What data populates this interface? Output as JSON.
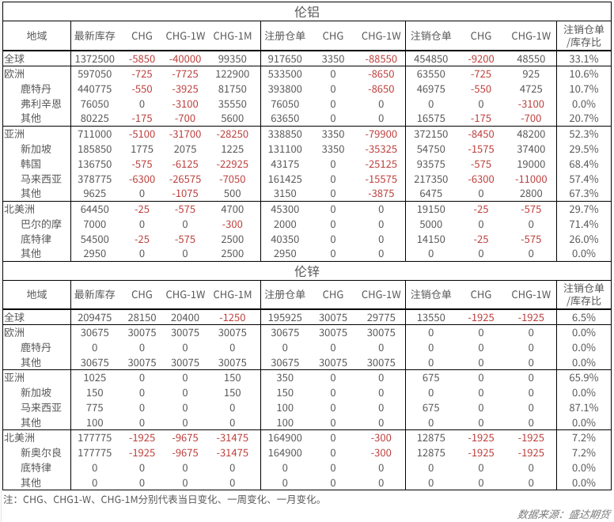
{
  "colors": {
    "text": "#595959",
    "negative": "#bc3f3c",
    "border": "#000000",
    "background": "#ffffff",
    "edge_line": "#e2e2e2"
  },
  "chart_data": [
    {
      "type": "table",
      "title": "伦铝",
      "columns": [
        "地域",
        "最新库存",
        "CHG",
        "CHG-1W",
        "CHG-1M",
        "注册仓单",
        "CHG",
        "CHG-1W",
        "注销仓单",
        "CHG",
        "CHG-1W",
        "注销仓单\n/库存比"
      ],
      "groups": [
        [
          {
            "region": "全球",
            "indent": false,
            "values": [
              "1372500",
              "-5850",
              "-40000",
              "99350",
              "917650",
              "3350",
              "-88550",
              "454850",
              "-9200",
              "48550",
              "33.1%"
            ]
          }
        ],
        [
          {
            "region": "欧洲",
            "indent": false,
            "values": [
              "597050",
              "-725",
              "-7725",
              "122900",
              "533500",
              "0",
              "-8650",
              "63550",
              "-725",
              "925",
              "10.6%"
            ]
          },
          {
            "region": "鹿特丹",
            "indent": true,
            "values": [
              "440775",
              "-550",
              "-3925",
              "81750",
              "393800",
              "0",
              "-8650",
              "46975",
              "-550",
              "4725",
              "10.7%"
            ]
          },
          {
            "region": "弗利辛恩",
            "indent": true,
            "values": [
              "76050",
              "0",
              "-3100",
              "35550",
              "76050",
              "0",
              "0",
              "0",
              "0",
              "-3100",
              "0.0%"
            ]
          },
          {
            "region": "其他",
            "indent": true,
            "values": [
              "80225",
              "-175",
              "-700",
              "5600",
              "63650",
              "0",
              "0",
              "16575",
              "-175",
              "-700",
              "20.7%"
            ]
          }
        ],
        [
          {
            "region": "亚洲",
            "indent": false,
            "values": [
              "711000",
              "-5100",
              "-31700",
              "-28250",
              "338850",
              "3350",
              "-79900",
              "372150",
              "-8450",
              "48200",
              "52.3%"
            ]
          },
          {
            "region": "新加坡",
            "indent": true,
            "values": [
              "185850",
              "1775",
              "2075",
              "1225",
              "131100",
              "3350",
              "-35325",
              "54750",
              "-1575",
              "37400",
              "29.5%"
            ]
          },
          {
            "region": "韩国",
            "indent": true,
            "values": [
              "136750",
              "-575",
              "-6125",
              "-22925",
              "43175",
              "0",
              "-25125",
              "93575",
              "-575",
              "19000",
              "68.4%"
            ]
          },
          {
            "region": "马来西亚",
            "indent": true,
            "values": [
              "378775",
              "-6300",
              "-26575",
              "-7050",
              "161425",
              "0",
              "-15575",
              "217350",
              "-6300",
              "-11000",
              "57.4%"
            ]
          },
          {
            "region": "其他",
            "indent": true,
            "values": [
              "9625",
              "0",
              "-1075",
              "500",
              "3150",
              "0",
              "-3875",
              "6475",
              "0",
              "2800",
              "67.3%"
            ]
          }
        ],
        [
          {
            "region": "北美洲",
            "indent": false,
            "values": [
              "64450",
              "-25",
              "-575",
              "4700",
              "45300",
              "0",
              "0",
              "19150",
              "-25",
              "-575",
              "29.7%"
            ]
          },
          {
            "region": "巴尔的摩",
            "indent": true,
            "values": [
              "7000",
              "0",
              "0",
              "-300",
              "2000",
              "0",
              "0",
              "5000",
              "0",
              "0",
              "71.4%"
            ]
          },
          {
            "region": "底特律",
            "indent": true,
            "values": [
              "54500",
              "-25",
              "-575",
              "2500",
              "40350",
              "0",
              "0",
              "14150",
              "-25",
              "-575",
              "26.0%"
            ]
          },
          {
            "region": "其他",
            "indent": true,
            "values": [
              "2950",
              "0",
              "0",
              "2500",
              "2950",
              "0",
              "0",
              "0",
              "0",
              "0",
              "0.0%"
            ]
          }
        ]
      ]
    },
    {
      "type": "table",
      "title": "伦锌",
      "columns": [
        "地域",
        "最新库存",
        "CHG",
        "CHG-1W",
        "CHG-1M",
        "注册仓单",
        "CHG",
        "CHG-1W",
        "注销仓单",
        "CHG",
        "CHG-1W",
        "注销仓单\n/库存比"
      ],
      "groups": [
        [
          {
            "region": "全球",
            "indent": false,
            "values": [
              "209475",
              "28150",
              "20400",
              "-1250",
              "195925",
              "30075",
              "29775",
              "13550",
              "-1925",
              "-1925",
              "6.5%"
            ]
          }
        ],
        [
          {
            "region": "欧洲",
            "indent": false,
            "values": [
              "30675",
              "30075",
              "30075",
              "30075",
              "30675",
              "30075",
              "30075",
              "0",
              "0",
              "0",
              "0.0%"
            ]
          },
          {
            "region": "鹿特丹",
            "indent": true,
            "values": [
              "0",
              "0",
              "0",
              "0",
              "0",
              "0",
              "0",
              "0",
              "0",
              "0",
              "0.0%"
            ]
          },
          {
            "region": "其他",
            "indent": true,
            "values": [
              "30675",
              "30075",
              "30075",
              "30075",
              "30675",
              "30075",
              "30075",
              "0",
              "0",
              "0",
              "0.0%"
            ]
          }
        ],
        [
          {
            "region": "亚洲",
            "indent": false,
            "values": [
              "1025",
              "0",
              "0",
              "150",
              "350",
              "0",
              "0",
              "675",
              "0",
              "0",
              "65.9%"
            ]
          },
          {
            "region": "新加坡",
            "indent": true,
            "values": [
              "150",
              "0",
              "0",
              "150",
              "150",
              "0",
              "0",
              "0",
              "0",
              "0",
              "0.0%"
            ]
          },
          {
            "region": "马来西亚",
            "indent": true,
            "values": [
              "775",
              "0",
              "0",
              "0",
              "100",
              "0",
              "0",
              "675",
              "0",
              "0",
              "87.1%"
            ]
          },
          {
            "region": "其他",
            "indent": true,
            "values": [
              "100",
              "0",
              "0",
              "0",
              "100",
              "0",
              "0",
              "0",
              "0",
              "0",
              "0.0%"
            ]
          }
        ],
        [
          {
            "region": "北美洲",
            "indent": false,
            "values": [
              "177775",
              "-1925",
              "-9675",
              "-31475",
              "164900",
              "0",
              "-300",
              "12875",
              "-1925",
              "-1925",
              "7.2%"
            ]
          },
          {
            "region": "新奥尔良",
            "indent": true,
            "values": [
              "177775",
              "-1925",
              "-9675",
              "-31475",
              "164900",
              "0",
              "-300",
              "12875",
              "-1925",
              "-1925",
              "7.2%"
            ]
          },
          {
            "region": "底特律",
            "indent": true,
            "values": [
              "0",
              "0",
              "0",
              "0",
              "0",
              "0",
              "0",
              "0",
              "0",
              "0",
              "0.0%"
            ]
          },
          {
            "region": "其他",
            "indent": true,
            "values": [
              "0",
              "0",
              "0",
              "0",
              "0",
              "0",
              "0",
              "0",
              "0",
              "0",
              "0.0%"
            ]
          }
        ]
      ]
    }
  ],
  "footnote": "注：CHG、CHG1-W、CHG-1M分别代表当日变化、一周变化、一月变化。",
  "source": "数据来源：盛达期货"
}
